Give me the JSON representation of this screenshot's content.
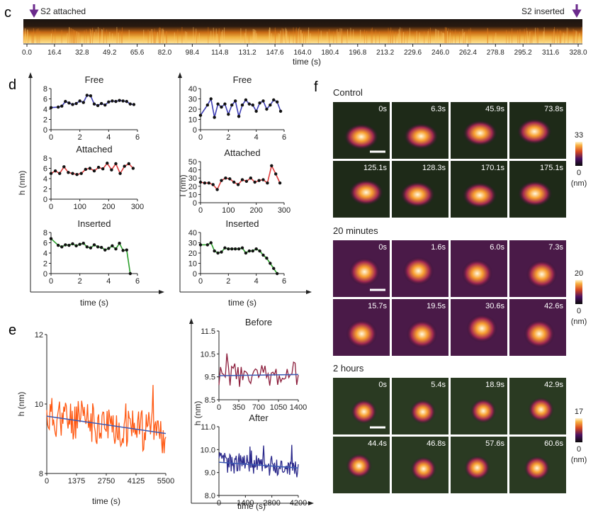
{
  "panels": {
    "c": "c",
    "d": "d",
    "e": "e",
    "f": "f"
  },
  "kymo": {
    "left_label": "S2 attached",
    "right_label": "S2 inserted",
    "xlabel": "time (s)",
    "ticks": [
      "0.0",
      "16.4",
      "32.8",
      "49.2",
      "65.6",
      "82.0",
      "98.4",
      "114.8",
      "131.2",
      "147.6",
      "164.0",
      "180.4",
      "196.8",
      "213.2",
      "229.6",
      "246.0",
      "262.4",
      "278.8",
      "295.2",
      "311.6",
      "328.0"
    ],
    "arrow_color": "#6b2a8c"
  },
  "colors": {
    "free": "#3c3cb4",
    "attached": "#e03c3c",
    "inserted": "#2ca02c",
    "orange": "#ff5a14",
    "maroon": "#8c1e3c",
    "navy": "#2c2a8c",
    "fit": "#3c5ab4",
    "axis": "#222222"
  },
  "chart_data": [
    {
      "panel": "d",
      "type": "line",
      "title": "Free",
      "xlabel": "",
      "ylabel": "h (nm)",
      "xlim": [
        0,
        6
      ],
      "ylim": [
        0,
        8
      ],
      "xticks": [
        "0",
        "2",
        "4",
        "6"
      ],
      "yticks": [
        "0",
        "2",
        "4",
        "6",
        "8"
      ],
      "x": [
        0,
        0.5,
        0.75,
        1.0,
        1.25,
        1.5,
        1.75,
        2.0,
        2.25,
        2.5,
        2.75,
        3.0,
        3.25,
        3.5,
        3.75,
        4.0,
        4.25,
        4.5,
        4.75,
        5.0,
        5.25,
        5.5,
        5.75
      ],
      "y": [
        4.3,
        4.4,
        4.6,
        5.5,
        5.2,
        4.9,
        5.1,
        5.6,
        5.3,
        6.7,
        6.6,
        5.0,
        4.7,
        5.1,
        4.8,
        5.4,
        5.6,
        5.5,
        5.7,
        5.6,
        5.5,
        5.0,
        4.9
      ]
    },
    {
      "panel": "d",
      "type": "line",
      "title": "Attached",
      "xlabel": "",
      "ylabel": "h (nm)",
      "xlim": [
        0,
        300
      ],
      "ylim": [
        0,
        8
      ],
      "xticks": [
        "0",
        "100",
        "200",
        "300"
      ],
      "yticks": [
        "0",
        "2",
        "4",
        "6",
        "8"
      ],
      "x": [
        0,
        15,
        30,
        45,
        60,
        75,
        90,
        105,
        120,
        135,
        150,
        165,
        180,
        195,
        210,
        225,
        240,
        255,
        270,
        285
      ],
      "y": [
        5.0,
        5.5,
        5.0,
        6.3,
        5.2,
        5.0,
        4.8,
        5.0,
        5.8,
        6.0,
        5.5,
        6.2,
        5.9,
        7.0,
        5.7,
        6.9,
        5.0,
        6.4,
        6.9,
        6.0
      ]
    },
    {
      "panel": "d",
      "type": "line",
      "title": "Inserted",
      "xlabel": "time (s)",
      "ylabel": "h (nm)",
      "xlim": [
        0,
        6
      ],
      "ylim": [
        0,
        8
      ],
      "xticks": [
        "0",
        "2",
        "4",
        "6"
      ],
      "yticks": [
        "0",
        "2",
        "4",
        "6",
        "8"
      ],
      "x": [
        0,
        0.5,
        0.75,
        1.0,
        1.25,
        1.5,
        1.75,
        2.0,
        2.25,
        2.5,
        2.75,
        3.0,
        3.25,
        3.5,
        3.75,
        4.0,
        4.25,
        4.5,
        4.75,
        5.0,
        5.25,
        5.5
      ],
      "y": [
        6.8,
        5.5,
        5.2,
        5.6,
        5.5,
        5.8,
        5.4,
        5.7,
        5.9,
        5.2,
        5.0,
        5.6,
        5.2,
        5.1,
        4.6,
        4.9,
        5.4,
        4.8,
        5.9,
        4.5,
        4.6,
        0.0
      ]
    },
    {
      "panel": "d",
      "type": "line",
      "title": "Free",
      "xlabel": "",
      "ylabel": "I (nm)",
      "xlim": [
        0,
        6
      ],
      "ylim": [
        0,
        40
      ],
      "xticks": [
        "0",
        "2",
        "4",
        "6"
      ],
      "yticks": [
        "0",
        "10",
        "20",
        "30",
        "40"
      ],
      "x": [
        0,
        0.5,
        0.75,
        1.0,
        1.25,
        1.5,
        1.75,
        2.0,
        2.25,
        2.5,
        2.75,
        3.0,
        3.25,
        3.5,
        3.75,
        4.0,
        4.25,
        4.5,
        4.75,
        5.0,
        5.25,
        5.5,
        5.75
      ],
      "y": [
        14,
        24,
        30,
        12,
        25,
        22,
        25,
        15,
        24,
        28,
        13,
        24,
        29,
        25,
        24,
        18,
        26,
        28,
        20,
        24,
        29,
        27,
        18
      ]
    },
    {
      "panel": "d",
      "type": "line",
      "title": "Attached",
      "xlabel": "",
      "ylabel": "I (nm)",
      "xlim": [
        0,
        300
      ],
      "ylim": [
        0,
        50
      ],
      "xticks": [
        "0",
        "100",
        "200",
        "300"
      ],
      "yticks": [
        "0",
        "10",
        "20",
        "30",
        "40",
        "50"
      ],
      "x": [
        0,
        15,
        30,
        45,
        60,
        75,
        90,
        105,
        120,
        135,
        150,
        165,
        180,
        195,
        210,
        225,
        240,
        255,
        270,
        285
      ],
      "y": [
        25,
        24,
        24,
        22,
        16,
        27,
        30,
        29,
        25,
        22,
        28,
        26,
        30,
        25,
        27,
        28,
        24,
        45,
        35,
        24
      ]
    },
    {
      "panel": "d",
      "type": "line",
      "title": "Inserted",
      "xlabel": "time (s)",
      "ylabel": "I (nm)",
      "xlim": [
        0,
        6
      ],
      "ylim": [
        0,
        40
      ],
      "xticks": [
        "0",
        "2",
        "4",
        "6"
      ],
      "yticks": [
        "0",
        "10",
        "20",
        "30",
        "40"
      ],
      "x": [
        0,
        0.5,
        0.75,
        1.0,
        1.25,
        1.5,
        1.75,
        2.0,
        2.25,
        2.5,
        2.75,
        3.0,
        3.25,
        3.5,
        3.75,
        4.0,
        4.25,
        4.5,
        4.75,
        5.0,
        5.25,
        5.5
      ],
      "y": [
        28,
        28,
        30,
        22,
        20,
        21,
        25,
        24,
        24,
        24,
        24,
        25,
        20,
        22,
        22,
        24,
        22,
        18,
        15,
        10,
        5,
        0
      ]
    },
    {
      "panel": "e",
      "type": "line",
      "title": "",
      "xlabel": "time (s)",
      "ylabel": "h (nm)",
      "xlim": [
        0,
        5500
      ],
      "ylim": [
        8,
        12
      ],
      "xticks": [
        "0",
        "1375",
        "2750",
        "4125",
        "5500"
      ],
      "yticks": [
        "8",
        "10",
        "12"
      ],
      "fit": [
        [
          0,
          9.65
        ],
        [
          5500,
          9.15
        ]
      ]
    },
    {
      "panel": "e",
      "type": "line",
      "title": "Before",
      "xlabel": "",
      "ylabel": "h (nm)",
      "xlim": [
        0,
        1400
      ],
      "ylim": [
        8.5,
        11.5
      ],
      "xticks": [
        "0",
        "350",
        "700",
        "1050",
        "1400"
      ],
      "yticks": [
        "8.5",
        "9.5",
        "10.5",
        "11.5"
      ],
      "fit": [
        [
          0,
          9.55
        ],
        [
          1400,
          9.6
        ]
      ]
    },
    {
      "panel": "e",
      "type": "line",
      "title": "After",
      "xlabel": "time (s)",
      "ylabel": "h (nm)",
      "xlim": [
        0,
        4200
      ],
      "ylim": [
        8.0,
        11.0
      ],
      "xticks": [
        "0",
        "1400",
        "2800",
        "4200"
      ],
      "yticks": [
        "8.0",
        "9.0",
        "10.0",
        "11.0"
      ],
      "fit": [
        [
          0,
          9.45
        ],
        [
          4200,
          9.2
        ]
      ]
    }
  ],
  "panel_f": {
    "groups": [
      {
        "label": "Control",
        "times": [
          "0s",
          "6.3s",
          "45.9s",
          "73.8s",
          "125.1s",
          "128.3s",
          "170.1s",
          "175.1s"
        ],
        "cbar_max": "33",
        "cbar_min": "0",
        "cbar_unit": "(nm)"
      },
      {
        "label": "20 minutes",
        "times": [
          "0s",
          "1.6s",
          "6.0s",
          "7.3s",
          "15.7s",
          "19.5s",
          "30.6s",
          "42.6s"
        ],
        "cbar_max": "20",
        "cbar_min": "0",
        "cbar_unit": "(nm)"
      },
      {
        "label": "2 hours",
        "times": [
          "0s",
          "5.4s",
          "18.9s",
          "42.9s",
          "44.4s",
          "46.8s",
          "57.6s",
          "60.6s"
        ],
        "cbar_max": "17",
        "cbar_min": "0",
        "cbar_unit": "(nm)"
      }
    ]
  }
}
